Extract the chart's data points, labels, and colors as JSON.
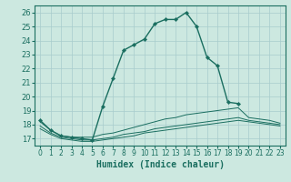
{
  "xlabel": "Humidex (Indice chaleur)",
  "bg_color": "#cce8e0",
  "grid_color": "#a8cccc",
  "line_color": "#1a6e60",
  "xlim": [
    -0.5,
    23.5
  ],
  "ylim": [
    16.5,
    26.5
  ],
  "yticks": [
    17,
    18,
    19,
    20,
    21,
    22,
    23,
    24,
    25,
    26
  ],
  "xticks": [
    0,
    1,
    2,
    3,
    4,
    5,
    6,
    7,
    8,
    9,
    10,
    11,
    12,
    13,
    14,
    15,
    16,
    17,
    18,
    19,
    20,
    21,
    22,
    23
  ],
  "line1_x": [
    0,
    1,
    2,
    3,
    4,
    5,
    6,
    7,
    8,
    9,
    10,
    11,
    12,
    13,
    14,
    15,
    16,
    17,
    18,
    19
  ],
  "line1_y": [
    18.3,
    17.6,
    17.2,
    17.1,
    17.0,
    16.9,
    19.3,
    21.3,
    23.3,
    23.7,
    24.1,
    25.2,
    25.5,
    25.5,
    26.0,
    25.0,
    22.8,
    22.2,
    19.6,
    19.5
  ],
  "line2_x": [
    0,
    1,
    2,
    3,
    4,
    5,
    6,
    7,
    8,
    9,
    10,
    11,
    12,
    13,
    14,
    15,
    16,
    17,
    18,
    19,
    20,
    21,
    22,
    23
  ],
  "line2_y": [
    18.2,
    17.6,
    17.2,
    17.1,
    17.1,
    17.1,
    17.3,
    17.4,
    17.6,
    17.8,
    18.0,
    18.2,
    18.4,
    18.5,
    18.7,
    18.8,
    18.9,
    19.0,
    19.1,
    19.2,
    18.5,
    18.4,
    18.3,
    18.1
  ],
  "line3_x": [
    0,
    1,
    2,
    3,
    4,
    5,
    6,
    7,
    8,
    9,
    10,
    11,
    12,
    13,
    14,
    15,
    16,
    17,
    18,
    19,
    20,
    21,
    22,
    23
  ],
  "line3_y": [
    17.9,
    17.4,
    17.1,
    17.0,
    16.9,
    16.9,
    17.0,
    17.1,
    17.3,
    17.4,
    17.5,
    17.7,
    17.8,
    17.9,
    18.0,
    18.1,
    18.2,
    18.3,
    18.4,
    18.5,
    18.3,
    18.2,
    18.1,
    18.0
  ],
  "line4_x": [
    0,
    1,
    2,
    3,
    4,
    5,
    6,
    7,
    8,
    9,
    10,
    11,
    12,
    13,
    14,
    15,
    16,
    17,
    18,
    19,
    20,
    21,
    22,
    23
  ],
  "line4_y": [
    17.7,
    17.3,
    17.0,
    16.9,
    16.8,
    16.8,
    16.9,
    17.0,
    17.1,
    17.2,
    17.4,
    17.5,
    17.6,
    17.7,
    17.8,
    17.9,
    18.0,
    18.1,
    18.2,
    18.3,
    18.2,
    18.1,
    18.0,
    17.9
  ]
}
